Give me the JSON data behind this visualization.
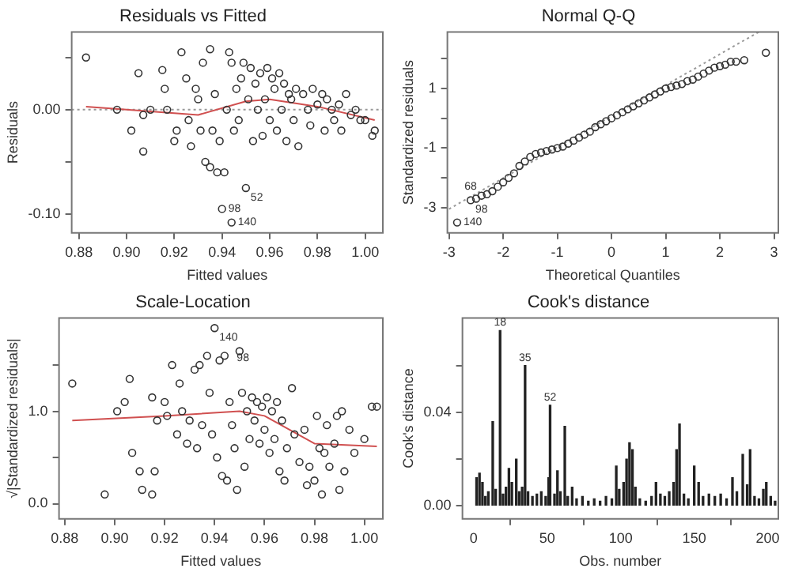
{
  "chart_data": [
    {
      "type": "scatter",
      "title": "Residuals vs Fitted",
      "xlabel": "Fitted values",
      "ylabel": "Residuals",
      "grid": false,
      "legend": false,
      "xlim": [
        0.877,
        1.0074
      ],
      "ylim": [
        -0.118,
        0.0745
      ],
      "xticks": [
        {
          "value": 0.88,
          "label": "0.88"
        },
        {
          "value": 0.9,
          "label": "0.90"
        },
        {
          "value": 0.92,
          "label": "0.92"
        },
        {
          "value": 0.94,
          "label": "0.94"
        },
        {
          "value": 0.96,
          "label": "0.96"
        },
        {
          "value": 0.98,
          "label": "0.98"
        },
        {
          "value": 1.0,
          "label": "1.00"
        }
      ],
      "yticks": [
        {
          "value": -0.1,
          "label": "-0.10"
        },
        {
          "value": -0.05,
          "label": null
        },
        {
          "value": 0,
          "label": "0.00"
        },
        {
          "value": 0.05,
          "label": null
        }
      ],
      "series": [
        {
          "color": "#333333",
          "marker": "circle",
          "x": [
            0.944,
            0.883,
            0.896,
            0.902,
            0.905,
            0.907,
            0.907,
            0.91,
            0.915,
            0.916,
            0.917,
            0.92,
            0.921,
            0.923,
            0.925,
            0.926,
            0.927,
            0.929,
            0.93,
            0.931,
            0.932,
            0.933,
            0.935,
            0.935,
            0.936,
            0.937,
            0.938,
            0.939,
            0.94,
            0.941,
            0.942,
            0.943,
            0.944,
            0.945,
            0.946,
            0.947,
            0.948,
            0.949,
            0.95,
            0.951,
            0.952,
            0.953,
            0.954,
            0.955,
            0.956,
            0.957,
            0.958,
            0.959,
            0.96,
            0.961,
            0.962,
            0.963,
            0.964,
            0.965,
            0.966,
            0.967,
            0.968,
            0.969,
            0.97,
            0.971,
            0.972,
            0.974,
            0.976,
            0.977,
            0.978,
            0.98,
            0.982,
            0.983,
            0.984,
            0.986,
            0.987,
            0.989,
            0.99,
            0.992,
            0.994,
            0.996,
            0.998,
            1.0,
            1.003,
            1.004
          ],
          "values": [
            -0.108,
            0.05,
            0.0,
            -0.02,
            0.035,
            -0.005,
            -0.04,
            0.0,
            0.038,
            0.02,
            0.0,
            -0.03,
            -0.02,
            0.055,
            0.03,
            -0.01,
            -0.035,
            0.02,
            0.01,
            -0.02,
            0.045,
            -0.05,
            0.058,
            -0.055,
            -0.02,
            0.015,
            -0.06,
            -0.03,
            -0.095,
            -0.06,
            0.0,
            0.055,
            0.045,
            -0.02,
            0.02,
            -0.01,
            0.03,
            0.045,
            -0.075,
            0.01,
            0.04,
            -0.03,
            0.025,
            0.0,
            0.035,
            -0.025,
            0.01,
            0.04,
            -0.01,
            0.03,
            0.02,
            -0.02,
            0.035,
            0.0,
            0.025,
            -0.03,
            0.015,
            0.01,
            -0.01,
            0.02,
            -0.035,
            0.015,
            0.0,
            -0.015,
            0.02,
            0.005,
            0.015,
            -0.02,
            0.01,
            0.0,
            -0.01,
            0.005,
            -0.02,
            0.015,
            -0.005,
            0.0,
            -0.01,
            -0.01,
            -0.025,
            -0.02
          ]
        },
        {
          "type": "line",
          "marker": "none",
          "color": "#d05050",
          "x": [
            0.883,
            0.9,
            0.93,
            0.95,
            0.96,
            0.98,
            1.004
          ],
          "values": [
            0.003,
            0.0,
            -0.005,
            0.008,
            0.01,
            0.003,
            -0.01
          ]
        }
      ],
      "ref_lines": [
        {
          "axis": "y",
          "value": 0,
          "color": "#999999",
          "line_style": "dotted"
        }
      ],
      "annotations": [
        {
          "text": "52",
          "x": 0.95,
          "y": -0.075
        },
        {
          "text": "98",
          "x": 0.94,
          "y": -0.095
        },
        {
          "text": "140",
          "x": 0.944,
          "y": -0.108
        }
      ]
    },
    {
      "type": "scatter",
      "title": "Normal Q-Q",
      "xlabel": "Theoretical Quantiles",
      "ylabel": "Standardized residuals",
      "grid": false,
      "legend": false,
      "xlim": [
        -3.03,
        3.08
      ],
      "ylim": [
        -3.85,
        2.9
      ],
      "xticks": [
        -3,
        -2,
        -1,
        0,
        1,
        2,
        3
      ],
      "yticks": [
        {
          "value": -3,
          "label": "-3"
        },
        {
          "value": -2,
          "label": null
        },
        {
          "value": -1,
          "label": "-1"
        },
        {
          "value": 0,
          "label": null
        },
        {
          "value": 1,
          "label": "1"
        },
        {
          "value": 2,
          "label": null
        }
      ],
      "series": [
        {
          "color": "#333333",
          "marker": "circle",
          "x": [
            -2.85,
            -2.6,
            -2.5,
            -2.4,
            -2.3,
            -2.2,
            -2.1,
            -2.0,
            -1.9,
            -1.8,
            -1.7,
            -1.6,
            -1.5,
            -1.4,
            -1.3,
            -1.2,
            -1.1,
            -1.0,
            -0.9,
            -0.8,
            -0.7,
            -0.6,
            -0.5,
            -0.4,
            -0.3,
            -0.2,
            -0.1,
            0,
            0.1,
            0.2,
            0.3,
            0.4,
            0.5,
            0.6,
            0.7,
            0.8,
            0.9,
            1.0,
            1.1,
            1.2,
            1.3,
            1.4,
            1.5,
            1.6,
            1.7,
            1.8,
            1.9,
            2.0,
            2.1,
            2.2,
            2.3,
            2.45,
            2.85
          ],
          "values": [
            -3.5,
            -2.75,
            -2.7,
            -2.6,
            -2.55,
            -2.45,
            -2.3,
            -2.15,
            -2.0,
            -1.85,
            -1.6,
            -1.45,
            -1.3,
            -1.2,
            -1.15,
            -1.1,
            -1.05,
            -1.0,
            -0.95,
            -0.85,
            -0.75,
            -0.65,
            -0.55,
            -0.45,
            -0.3,
            -0.2,
            -0.1,
            0,
            0.1,
            0.2,
            0.3,
            0.4,
            0.5,
            0.6,
            0.7,
            0.8,
            0.9,
            1.0,
            1.05,
            1.1,
            1.15,
            1.25,
            1.3,
            1.4,
            1.5,
            1.6,
            1.7,
            1.75,
            1.8,
            1.9,
            1.9,
            1.95,
            2.2
          ]
        },
        {
          "type": "line",
          "marker": "none",
          "color": "#999999",
          "line_style": "dotted",
          "x": [
            -3.0,
            2.72
          ],
          "values": [
            -3.05,
            2.9
          ]
        }
      ],
      "annotations": [
        {
          "text": "140",
          "x": -2.85,
          "y": -3.5
        },
        {
          "text": "98",
          "x": -2.6,
          "y": -2.75
        },
        {
          "text": "68",
          "x": -2.4,
          "y": -2.6
        }
      ]
    },
    {
      "type": "scatter",
      "title": "Scale-Location",
      "xlabel": "Fitted values",
      "ylabel": "√|Standardized residuals|",
      "grid": false,
      "legend": false,
      "xlim": [
        0.8777,
        1.0074
      ],
      "ylim": [
        -0.165,
        2.01
      ],
      "xticks": [
        {
          "value": 0.88,
          "label": "0.88"
        },
        {
          "value": 0.9,
          "label": "0.90"
        },
        {
          "value": 0.92,
          "label": "0.92"
        },
        {
          "value": 0.94,
          "label": "0.94"
        },
        {
          "value": 0.96,
          "label": "0.96"
        },
        {
          "value": 0.98,
          "label": "0.98"
        },
        {
          "value": 1.0,
          "label": "1.00"
        }
      ],
      "yticks": [
        {
          "value": 0,
          "label": "0.0"
        },
        {
          "value": 0.5,
          "label": null
        },
        {
          "value": 1,
          "label": "1.0"
        },
        {
          "value": 1.5,
          "label": null
        }
      ],
      "series": [
        {
          "color": "#333333",
          "marker": "circle",
          "x": [
            0.883,
            0.896,
            0.901,
            0.904,
            0.906,
            0.907,
            0.91,
            0.911,
            0.915,
            0.916,
            0.915,
            0.917,
            0.92,
            0.921,
            0.923,
            0.925,
            0.926,
            0.927,
            0.929,
            0.93,
            0.932,
            0.933,
            0.934,
            0.935,
            0.937,
            0.938,
            0.939,
            0.94,
            0.941,
            0.942,
            0.943,
            0.944,
            0.945,
            0.946,
            0.947,
            0.948,
            0.949,
            0.95,
            0.951,
            0.952,
            0.953,
            0.954,
            0.955,
            0.956,
            0.957,
            0.958,
            0.959,
            0.96,
            0.961,
            0.962,
            0.963,
            0.964,
            0.965,
            0.966,
            0.967,
            0.968,
            0.969,
            0.971,
            0.972,
            0.974,
            0.976,
            0.977,
            0.978,
            0.98,
            0.981,
            0.982,
            0.983,
            0.984,
            0.985,
            0.986,
            0.988,
            0.989,
            0.99,
            0.991,
            0.992,
            0.994,
            0.996,
            1.0,
            1.003,
            1.005
          ],
          "values": [
            1.3,
            0.1,
            1.0,
            1.1,
            1.35,
            0.55,
            0.35,
            0.15,
            0.1,
            0.35,
            1.15,
            0.9,
            1.1,
            0.95,
            1.5,
            0.75,
            1.3,
            1.0,
            0.65,
            0.9,
            1.45,
            0.6,
            1.5,
            0.85,
            1.6,
            1.2,
            0.75,
            1.9,
            0.5,
            1.55,
            0.3,
            1.6,
            0.25,
            1.1,
            0.85,
            0.6,
            0.15,
            1.65,
            1.2,
            0.4,
            1.0,
            0.7,
            1.15,
            0.9,
            1.1,
            0.65,
            1.05,
            0.8,
            1.15,
            0.55,
            1.0,
            0.7,
            1.1,
            0.35,
            0.9,
            0.25,
            0.6,
            1.25,
            0.75,
            0.45,
            0.8,
            0.2,
            0.4,
            0.25,
            0.95,
            0.6,
            0.1,
            0.55,
            0.85,
            0.4,
            0.65,
            0.95,
            0.15,
            1.0,
            0.35,
            0.8,
            0.55,
            0.7,
            1.05,
            1.05
          ]
        },
        {
          "type": "line",
          "marker": "none",
          "color": "#d05050",
          "x": [
            0.883,
            0.92,
            0.95,
            0.96,
            0.98,
            1.005
          ],
          "values": [
            0.9,
            0.95,
            1.0,
            0.95,
            0.65,
            0.62
          ]
        }
      ],
      "annotations": [
        {
          "text": "140",
          "x": 0.94,
          "y": 1.9
        },
        {
          "text": "98",
          "x": 0.947,
          "y": 1.68
        }
      ]
    },
    {
      "type": "bar",
      "title": "Cook's distance",
      "xlabel": "Obs. number",
      "ylabel": "Cook's distance",
      "grid": false,
      "legend": false,
      "xlim": [
        -7.6,
        207.2
      ],
      "ylim": [
        -0.0056,
        0.0804
      ],
      "xticks": [
        0,
        50,
        100,
        150,
        200
      ],
      "yticks": [
        {
          "value": 0,
          "label": "0.00"
        },
        {
          "value": 0.02,
          "label": null
        },
        {
          "value": 0.04,
          "label": "0.04"
        },
        {
          "value": 0.06,
          "label": null
        }
      ],
      "series": [
        {
          "color": "#222222",
          "x": [
            2,
            4,
            6,
            8,
            10,
            13,
            15,
            18,
            20,
            22,
            24,
            26,
            29,
            31,
            33,
            35,
            37,
            40,
            43,
            46,
            49,
            51,
            52,
            55,
            57,
            59,
            62,
            64,
            67,
            70,
            74,
            78,
            82,
            86,
            90,
            94,
            97,
            99,
            102,
            104,
            106,
            108,
            110,
            113,
            117,
            121,
            124,
            127,
            130,
            133,
            136,
            138,
            140,
            143,
            146,
            150,
            153,
            156,
            160,
            164,
            168,
            172,
            176,
            179,
            183,
            186,
            188,
            191,
            194,
            197,
            199,
            202,
            205
          ],
          "values": [
            0.012,
            0.014,
            0.01,
            0.004,
            0.006,
            0.036,
            0.007,
            0.075,
            0.005,
            0.008,
            0.016,
            0.01,
            0.02,
            0.006,
            0.008,
            0.06,
            0.006,
            0.004,
            0.005,
            0.006,
            0.004,
            0.012,
            0.043,
            0.005,
            0.015,
            0.006,
            0.034,
            0.004,
            0.008,
            0.003,
            0.004,
            0.002,
            0.003,
            0.002,
            0.004,
            0.003,
            0.017,
            0.007,
            0.01,
            0.02,
            0.027,
            0.024,
            0.008,
            0.003,
            0.002,
            0.004,
            0.01,
            0.005,
            0.004,
            0.006,
            0.01,
            0.024,
            0.035,
            0.005,
            0.003,
            0.017,
            0.01,
            0.004,
            0.005,
            0.004,
            0.005,
            0.003,
            0.012,
            0.006,
            0.022,
            0.009,
            0.024,
            0.004,
            0.003,
            0.007,
            0.01,
            0.004,
            0.002
          ]
        }
      ],
      "annotations": [
        {
          "text": "18",
          "x": 18,
          "y": 0.075
        },
        {
          "text": "35",
          "x": 35,
          "y": 0.06
        },
        {
          "text": "52",
          "x": 52,
          "y": 0.043
        }
      ]
    }
  ]
}
